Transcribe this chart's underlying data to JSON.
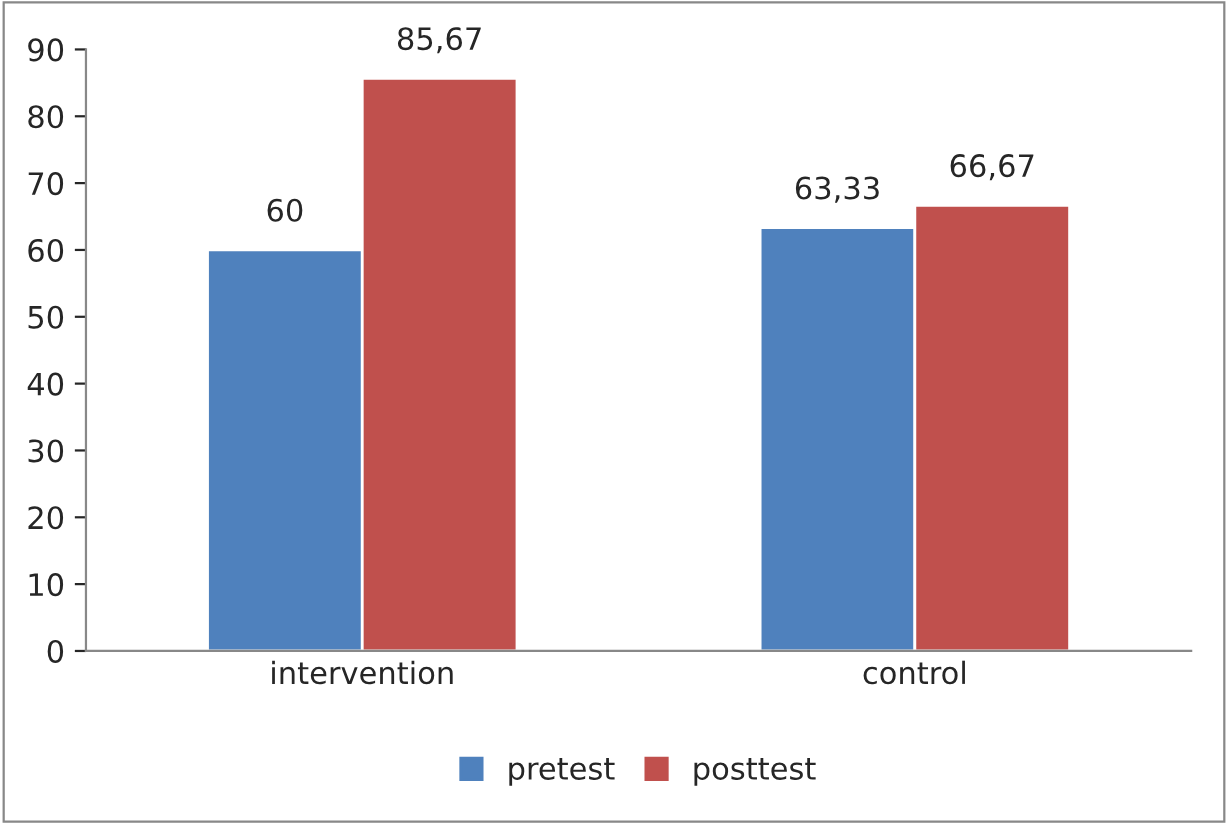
{
  "chart_data": {
    "type": "bar",
    "categories": [
      "intervention",
      "control"
    ],
    "series": [
      {
        "name": "pretest",
        "color": "#4f81bd",
        "values": [
          60,
          63.33
        ],
        "value_labels": [
          "60",
          "63,33"
        ]
      },
      {
        "name": "posttest",
        "color": "#c0504d",
        "values": [
          85.67,
          66.67
        ],
        "value_labels": [
          "85,67",
          "66,67"
        ]
      }
    ],
    "ylim": [
      0,
      90
    ],
    "yticks": [
      0,
      10,
      20,
      30,
      40,
      50,
      60,
      70,
      80,
      90
    ],
    "grid": false,
    "legend": "bottom"
  }
}
